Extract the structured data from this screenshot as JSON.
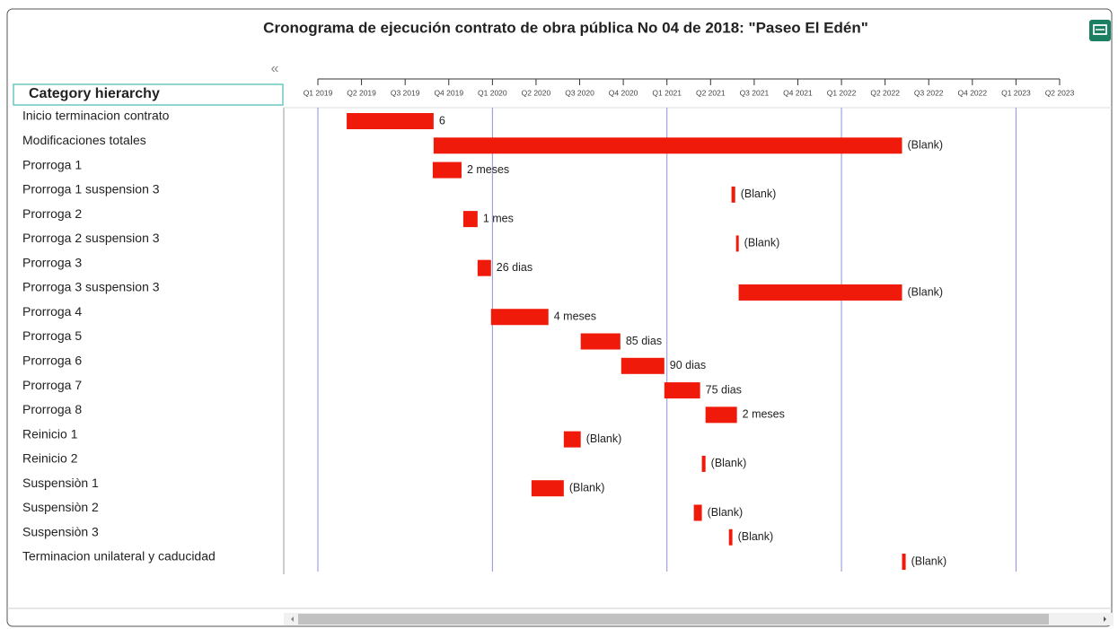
{
  "chart_data": {
    "type": "gantt",
    "title": "Cronograma de ejecución contrato de obra pública No 04 de 2018: \"Paseo El Edén\"",
    "collapse_icon": "«",
    "category_header": "Category hierarchy",
    "categories": [
      "Inicio terminacion contrato",
      "Modificaciones totales",
      "Prorroga 1",
      "Prorroga 1 suspension 3",
      "Prorroga 2",
      "Prorroga 2 suspension 3",
      "Prorroga 3",
      "Prorroga 3 suspension 3",
      "Prorroga 4",
      "Prorroga 5",
      "Prorroga 6",
      "Prorroga 7",
      "Prorroga 8",
      "Reinicio 1",
      "Reinicio 2",
      "Suspensiòn 1",
      "Suspensiòn 2",
      "Suspensiòn 3",
      "Terminacion unilateral y caducidad"
    ],
    "start": [
      2019.165,
      2019.663,
      2019.658,
      2021.37,
      2019.833,
      2021.396,
      2019.915,
      2021.411,
      2019.992,
      2020.506,
      2020.738,
      2020.985,
      2021.221,
      2020.409,
      2021.2,
      2020.224,
      2021.154,
      2021.355,
      2022.347
    ],
    "end": [
      2019.663,
      2022.347,
      2019.823,
      2021.391,
      2019.915,
      2021.411,
      2019.992,
      2022.347,
      2020.321,
      2020.733,
      2020.985,
      2021.19,
      2021.401,
      2020.506,
      2021.221,
      2020.409,
      2021.2,
      2021.375,
      2022.368
    ],
    "bar_labels": [
      "6",
      "(Blank)",
      "2 meses",
      "(Blank)",
      "1 mes",
      "(Blank)",
      "26 dias",
      "(Blank)",
      "4 meses",
      "85 dias",
      "90 dias",
      "75 dias",
      "2 meses",
      "(Blank)",
      "(Blank)",
      "(Blank)",
      "(Blank)",
      "(Blank)",
      "(Blank)"
    ],
    "color": "#f01a0a",
    "grid_color": "#8c90e0",
    "xlim": [
      2019,
      2023.25
    ],
    "xticks": [
      {
        "value": 2019,
        "label": "Q1 2019"
      },
      {
        "value": 2019.25,
        "label": "Q2 2019"
      },
      {
        "value": 2019.5,
        "label": "Q3 2019"
      },
      {
        "value": 2019.75,
        "label": "Q4 2019"
      },
      {
        "value": 2020,
        "label": "Q1 2020"
      },
      {
        "value": 2020.25,
        "label": "Q2 2020"
      },
      {
        "value": 2020.5,
        "label": "Q3 2020"
      },
      {
        "value": 2020.75,
        "label": "Q4 2020"
      },
      {
        "value": 2021,
        "label": "Q1 2021"
      },
      {
        "value": 2021.25,
        "label": "Q2 2021"
      },
      {
        "value": 2021.5,
        "label": "Q3 2021"
      },
      {
        "value": 2021.75,
        "label": "Q4 2021"
      },
      {
        "value": 2022,
        "label": "Q1 2022"
      },
      {
        "value": 2022.25,
        "label": "Q2 2022"
      },
      {
        "value": 2022.5,
        "label": "Q3 2022"
      },
      {
        "value": 2022.75,
        "label": "Q4 2022"
      },
      {
        "value": 2023,
        "label": "Q1 2023"
      },
      {
        "value": 2023.25,
        "label": "Q2 2023"
      }
    ],
    "grid": true
  }
}
